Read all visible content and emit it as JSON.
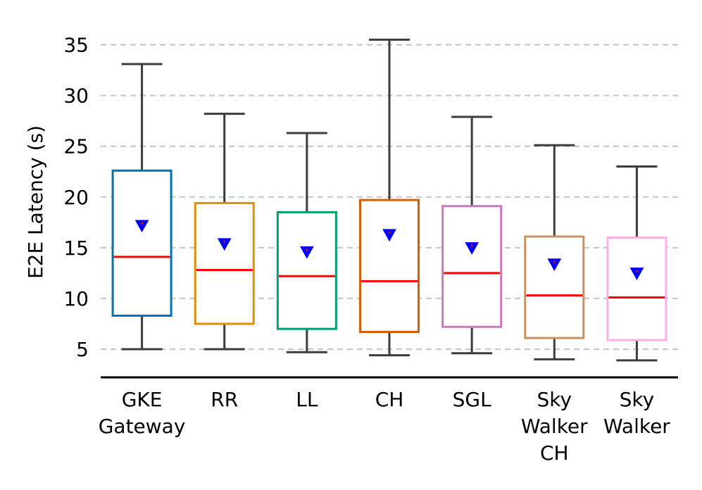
{
  "chart_data": {
    "type": "box",
    "title": "",
    "xlabel": "",
    "ylabel": "E2E Latency (s)",
    "ylim": [
      2.5,
      36.5
    ],
    "yticks": [
      5,
      10,
      15,
      20,
      25,
      30,
      35
    ],
    "grid": "horizontal-dashed",
    "series": [
      {
        "name": "GKE Gateway",
        "label_lines": [
          "GKE",
          "Gateway"
        ],
        "color": "#0173B2",
        "whisker_low": 5.0,
        "q1": 8.3,
        "median": 14.1,
        "q3": 22.6,
        "whisker_high": 33.1,
        "mean": 17.2
      },
      {
        "name": "RR",
        "label_lines": [
          "RR"
        ],
        "color": "#DE8F05",
        "whisker_low": 5.0,
        "q1": 7.5,
        "median": 12.8,
        "q3": 19.4,
        "whisker_high": 28.2,
        "mean": 15.4
      },
      {
        "name": "LL",
        "label_lines": [
          "LL"
        ],
        "color": "#029E73",
        "whisker_low": 4.7,
        "q1": 7.0,
        "median": 12.2,
        "q3": 18.5,
        "whisker_high": 26.3,
        "mean": 14.6
      },
      {
        "name": "CH",
        "label_lines": [
          "CH"
        ],
        "color": "#D55E00",
        "whisker_low": 4.4,
        "q1": 6.7,
        "median": 11.7,
        "q3": 19.7,
        "whisker_high": 35.5,
        "mean": 16.3
      },
      {
        "name": "SGL",
        "label_lines": [
          "SGL"
        ],
        "color": "#CC78BC",
        "whisker_low": 4.6,
        "q1": 7.2,
        "median": 12.5,
        "q3": 19.1,
        "whisker_high": 27.9,
        "mean": 15.0
      },
      {
        "name": "Sky Walker CH",
        "label_lines": [
          "Sky",
          "Walker",
          "CH"
        ],
        "color": "#CA9161",
        "whisker_low": 4.0,
        "q1": 6.1,
        "median": 10.3,
        "q3": 16.1,
        "whisker_high": 25.1,
        "mean": 13.4
      },
      {
        "name": "Sky Walker",
        "label_lines": [
          "Sky",
          "Walker"
        ],
        "color": "#FBAFE4",
        "whisker_low": 3.9,
        "q1": 5.9,
        "median": 10.1,
        "q3": 16.0,
        "whisker_high": 23.0,
        "mean": 12.5
      }
    ],
    "median_color": "#FF0000",
    "mean_marker_color": "#0000FF",
    "whisker_color": "#3c3c3c"
  }
}
